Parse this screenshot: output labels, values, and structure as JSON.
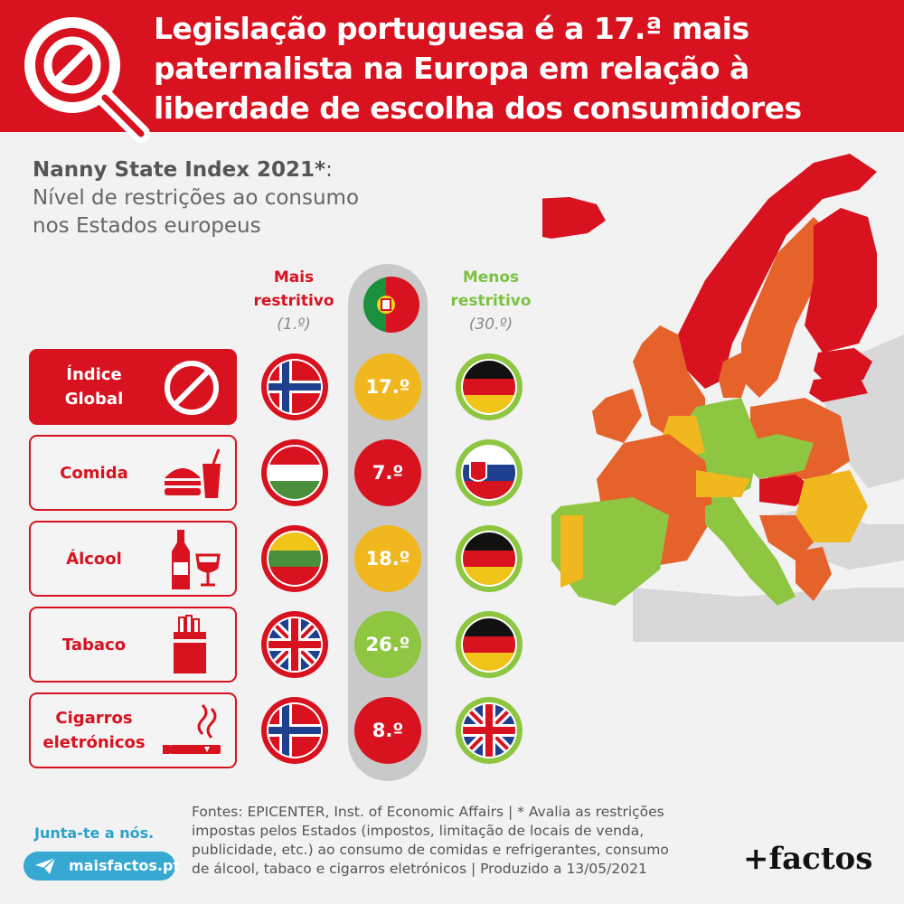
{
  "header": {
    "title_lines": [
      "Legislação portuguesa é a 17.ª mais",
      "paternalista na Europa em relação à",
      "liberdade de escolha dos consumidores"
    ]
  },
  "subtitle": {
    "bold": "Nanny State Index 2021*",
    "colon": ":",
    "line2": "Nível de restrições ao consumo",
    "line3": "nos Estados europeus"
  },
  "columns": {
    "most": {
      "label_line1": "Mais",
      "label_line2": "restritivo",
      "rank": "(1.º)"
    },
    "least": {
      "label_line1": "Menos",
      "label_line2": "restritivo",
      "rank": "(30.º)"
    },
    "portugal_flag": "portugal-flag"
  },
  "rows": [
    {
      "label_line1": "Índice",
      "label_line2": "Global",
      "icon": "no-entry-icon",
      "most_flag": "norway",
      "pt_rank": "17.º",
      "pt_color": "#f0b81e",
      "least_flag": "germany"
    },
    {
      "label_line1": "Comida",
      "label_line2": "",
      "icon": "food-icon",
      "most_flag": "hungary",
      "pt_rank": "7.º",
      "pt_color": "#d8121f",
      "least_flag": "slovakia"
    },
    {
      "label_line1": "Álcool",
      "label_line2": "",
      "icon": "alcohol-icon",
      "most_flag": "lithuania",
      "pt_rank": "18.º",
      "pt_color": "#f0b81e",
      "least_flag": "germany"
    },
    {
      "label_line1": "Tabaco",
      "label_line2": "",
      "icon": "tobacco-icon",
      "most_flag": "uk",
      "pt_rank": "26.º",
      "pt_color": "#8ec641",
      "least_flag": "germany"
    },
    {
      "label_line1": "Cigarros",
      "label_line2": "eletrónicos",
      "icon": "ecigarette-icon",
      "most_flag": "norway",
      "pt_rank": "8.º",
      "pt_color": "#d8121f",
      "least_flag": "uk"
    }
  ],
  "colors": {
    "red": "#d8121f",
    "orange": "#e5622a",
    "yellow": "#f0b81e",
    "green": "#8ec641",
    "ring_green": "#8ec641",
    "ring_red": "#d8121f"
  },
  "footer": {
    "lines": [
      "Fontes: EPICENTER, Inst. of Economic Affairs | * Avalia as restrições",
      "impostas pelos Estados (impostos, limitação de locais de venda,",
      "publicidade, etc.) ao consumo de comidas e refrigerantes, consumo",
      "de álcool, tabaco e cigarros eletrónicos | Produzido a 13/05/2021"
    ],
    "join": "Junta-te a nós.",
    "site": "maisfactos.pt",
    "brand": "+factos"
  }
}
